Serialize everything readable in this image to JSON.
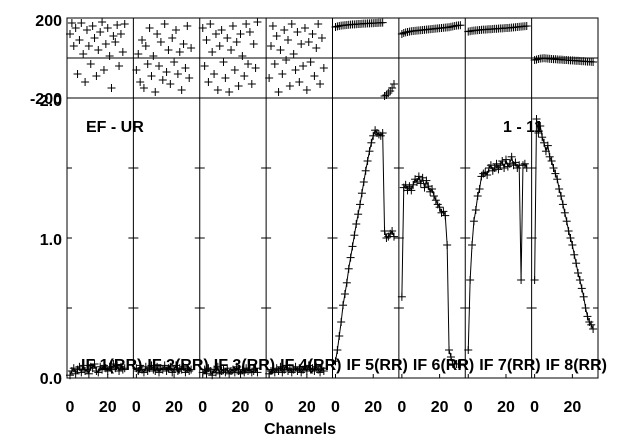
{
  "chart_data": {
    "type": "scatter",
    "annotation_left": "EF - UR",
    "annotation_right": "1 - 11",
    "xlabel": "Channels",
    "x_ticks": [
      0,
      20
    ],
    "xlim": [
      0,
      32
    ],
    "phase_panel": {
      "ylim": [
        -200,
        200
      ],
      "tick_labels": [
        "200",
        "-200"
      ]
    },
    "amp_panel": {
      "ylim": [
        0,
        2.0
      ],
      "tick_labels": [
        "0.0",
        "1.0",
        "2.0"
      ]
    },
    "panels": [
      {
        "label": "IF 1(RR)",
        "phase": [
          120,
          175,
          60,
          150,
          -80,
          90,
          175,
          20,
          -120,
          140,
          60,
          -30,
          160,
          100,
          -90,
          40,
          130,
          180,
          -60,
          70,
          150,
          10,
          -150,
          110,
          80,
          165,
          -40,
          120,
          30,
          170
        ],
        "amp": [
          0.02,
          0.05,
          0.07,
          0.03,
          0.06,
          0.08,
          0.04,
          0.09,
          0.05,
          0.06,
          0.03,
          0.08,
          0.07,
          0.1,
          0.05,
          0.04,
          0.08,
          0.06,
          0.09,
          0.07,
          0.05,
          0.08,
          0.06,
          0.1,
          0.07,
          0.09,
          0.05,
          0.08,
          0.06,
          0.07
        ]
      },
      {
        "label": "IF 2(RR)",
        "phase": [
          -60,
          20,
          -120,
          90,
          -150,
          60,
          -30,
          150,
          -90,
          10,
          -170,
          120,
          -40,
          80,
          -110,
          170,
          -70,
          40,
          -130,
          100,
          -20,
          140,
          -80,
          30,
          -160,
          70,
          -50,
          160,
          -100,
          50
        ],
        "amp": [
          0.07,
          0.05,
          0.09,
          0.06,
          0.04,
          0.08,
          0.05,
          0.07,
          0.09,
          0.06,
          0.05,
          0.08,
          0.04,
          0.07,
          0.06,
          0.09,
          0.05,
          0.07,
          0.08,
          0.04,
          0.06,
          0.09,
          0.05,
          0.07,
          0.06,
          0.08,
          0.04,
          0.07,
          0.05,
          0.06
        ]
      },
      {
        "label": "IF 3(RR)",
        "phase": [
          150,
          -40,
          90,
          -120,
          170,
          30,
          -80,
          120,
          -160,
          60,
          140,
          -20,
          -100,
          100,
          -170,
          40,
          160,
          -60,
          80,
          -140,
          120,
          10,
          -90,
          170,
          -30,
          130,
          -130,
          70,
          -50,
          180
        ],
        "amp": [
          0.04,
          0.06,
          0.03,
          0.07,
          0.05,
          0.02,
          0.06,
          0.04,
          0.08,
          0.03,
          0.05,
          0.06,
          0.04,
          0.07,
          0.03,
          0.05,
          0.06,
          0.04,
          0.08,
          0.05,
          0.03,
          0.06,
          0.04,
          0.07,
          0.05,
          0.06,
          0.04,
          0.05,
          0.07,
          0.04
        ]
      },
      {
        "label": "IF 4(RR)",
        "phase": [
          -100,
          60,
          160,
          -30,
          110,
          -170,
          40,
          -80,
          140,
          -10,
          90,
          -140,
          170,
          20,
          -60,
          130,
          -120,
          70,
          -40,
          150,
          -160,
          80,
          -20,
          120,
          -90,
          50,
          170,
          -130,
          100,
          -50
        ],
        "amp": [
          0.03,
          0.05,
          0.06,
          0.04,
          0.07,
          0.05,
          0.08,
          0.04,
          0.06,
          0.09,
          0.05,
          0.07,
          0.04,
          0.06,
          0.08,
          0.05,
          0.07,
          0.04,
          0.06,
          0.08,
          0.05,
          0.09,
          0.06,
          0.07,
          0.05,
          0.08,
          0.06,
          0.04,
          0.07,
          0.05
        ]
      },
      {
        "label": "IF 5(RR)",
        "phase": [
          155,
          158,
          160,
          162,
          163,
          164,
          165,
          166,
          167,
          168,
          168,
          169,
          170,
          170,
          171,
          172,
          172,
          173,
          173,
          174,
          174,
          175,
          175,
          176,
          176,
          177,
          -190,
          -185,
          -175,
          -165,
          -150,
          -130
        ],
        "amp": [
          0.12,
          0.2,
          0.3,
          0.4,
          0.52,
          0.6,
          0.68,
          0.78,
          0.86,
          0.94,
          1.02,
          1.1,
          1.17,
          1.24,
          1.32,
          1.4,
          1.48,
          1.55,
          1.62,
          1.68,
          1.73,
          1.77,
          1.75,
          1.74,
          1.73,
          1.75,
          1.05,
          1.0,
          1.01,
          1.03,
          1.05,
          1.01
        ]
      },
      {
        "label": "IF 6(RR)",
        "phase": [
          120,
          125,
          128,
          130,
          132,
          134,
          135,
          136,
          137,
          138,
          139,
          140,
          141,
          142,
          143,
          144,
          145,
          146,
          147,
          148,
          149,
          150,
          151,
          152,
          153,
          154,
          156,
          158,
          160,
          162,
          163,
          164
        ],
        "amp": [
          0.58,
          1.36,
          1.38,
          1.34,
          1.37,
          1.34,
          1.38,
          1.42,
          1.4,
          1.44,
          1.39,
          1.43,
          1.36,
          1.41,
          1.37,
          1.33,
          1.35,
          1.3,
          1.27,
          1.24,
          1.22,
          1.18,
          1.19,
          1.16,
          0.95,
          0.2,
          0.15,
          0.1,
          0.1,
          0.1,
          0.1,
          0.1
        ]
      },
      {
        "label": "IF 7(RR)",
        "phase": [
          132,
          134,
          136,
          137,
          138,
          139,
          140,
          141,
          142,
          142,
          143,
          144,
          144,
          145,
          146,
          146,
          147,
          148,
          148,
          149,
          150,
          150,
          151,
          152,
          153,
          154,
          155,
          156,
          157,
          158,
          159,
          160
        ],
        "amp": [
          0.2,
          0.7,
          0.95,
          1.12,
          1.2,
          1.3,
          1.35,
          1.44,
          1.46,
          1.47,
          1.45,
          1.5,
          1.52,
          1.48,
          1.5,
          1.53,
          1.49,
          1.52,
          1.55,
          1.5,
          1.56,
          1.51,
          1.53,
          1.58,
          1.52,
          1.54,
          1.5,
          1.52,
          0.7,
          1.52,
          1.53,
          1.5
        ]
      },
      {
        "label": "IF 8(RR)",
        "phase": [
          -10,
          -8,
          -5,
          -3,
          -2,
          -1,
          -2,
          -3,
          -4,
          -5,
          -6,
          -6,
          -7,
          -8,
          -8,
          -9,
          -10,
          -10,
          -11,
          -12,
          -12,
          -13,
          -14,
          -14,
          -15,
          -16,
          -16,
          -17,
          -18,
          -18,
          -19,
          -20
        ],
        "amp": [
          0.7,
          1.85,
          1.75,
          1.8,
          1.72,
          1.68,
          1.62,
          1.66,
          1.58,
          1.55,
          1.5,
          1.46,
          1.42,
          1.35,
          1.3,
          1.24,
          1.18,
          1.12,
          1.05,
          1.0,
          0.95,
          0.88,
          0.82,
          0.75,
          0.7,
          0.64,
          0.58,
          0.5,
          0.44,
          0.4,
          0.38,
          0.35
        ]
      }
    ]
  }
}
